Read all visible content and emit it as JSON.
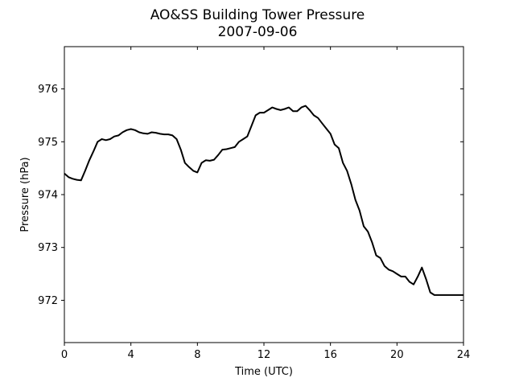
{
  "chart_data": {
    "type": "line",
    "title": "AO&SS Building Tower Pressure",
    "subtitle": "2007-09-06",
    "xlabel": "Time (UTC)",
    "ylabel": "Pressure (hPa)",
    "xlim": [
      0,
      24
    ],
    "ylim": [
      971.2,
      976.8
    ],
    "xticks": [
      0,
      4,
      8,
      12,
      16,
      20,
      24
    ],
    "yticks": [
      972,
      973,
      974,
      975,
      976
    ],
    "grid": false,
    "line_color": "#000000",
    "series": [
      {
        "x": [
          0,
          0.25,
          0.5,
          0.75,
          1.0,
          1.25,
          1.5,
          1.75,
          2.0,
          2.25,
          2.5,
          2.75,
          3.0,
          3.25,
          3.5,
          3.75,
          4.0,
          4.25,
          4.5,
          4.75,
          5.0,
          5.25,
          5.5,
          5.75,
          6.0,
          6.25,
          6.5,
          6.75,
          7.0,
          7.25,
          7.5,
          7.75,
          8.0,
          8.25,
          8.5,
          8.75,
          9.0,
          9.25,
          9.5,
          9.75,
          10.0,
          10.25,
          10.5,
          10.75,
          11.0,
          11.25,
          11.5,
          11.75,
          12.0,
          12.25,
          12.5,
          12.75,
          13.0,
          13.25,
          13.5,
          13.75,
          14.0,
          14.25,
          14.5,
          14.75,
          15.0,
          15.25,
          15.5,
          15.75,
          16.0,
          16.25,
          16.5,
          16.75,
          17.0,
          17.25,
          17.5,
          17.75,
          18.0,
          18.25,
          18.5,
          18.75,
          19.0,
          19.25,
          19.5,
          19.75,
          20.0,
          20.25,
          20.5,
          20.75,
          21.0,
          21.25,
          21.5,
          21.75,
          22.0,
          22.25,
          22.5,
          22.75,
          23.0,
          23.25,
          23.5,
          23.75,
          24.0
        ],
        "values": [
          974.4,
          974.33,
          974.3,
          974.28,
          974.27,
          974.45,
          974.65,
          974.82,
          975.0,
          975.05,
          975.03,
          975.05,
          975.1,
          975.12,
          975.18,
          975.22,
          975.24,
          975.22,
          975.18,
          975.16,
          975.15,
          975.18,
          975.17,
          975.15,
          975.14,
          975.14,
          975.12,
          975.05,
          974.85,
          974.6,
          974.52,
          974.45,
          974.42,
          974.6,
          974.65,
          974.64,
          974.66,
          974.75,
          974.85,
          974.86,
          974.88,
          974.9,
          975.0,
          975.05,
          975.1,
          975.3,
          975.5,
          975.55,
          975.55,
          975.6,
          975.65,
          975.62,
          975.6,
          975.62,
          975.65,
          975.58,
          975.58,
          975.65,
          975.68,
          975.6,
          975.5,
          975.45,
          975.35,
          975.25,
          975.15,
          974.95,
          974.88,
          974.6,
          974.45,
          974.2,
          973.9,
          973.7,
          973.4,
          973.3,
          973.1,
          972.85,
          972.8,
          972.65,
          972.58,
          972.55,
          972.5,
          972.45,
          972.45,
          972.35,
          972.3,
          972.45,
          972.62,
          972.4,
          972.15,
          972.1,
          972.1,
          972.1,
          972.1,
          972.1,
          972.1,
          972.1,
          972.1
        ]
      }
    ]
  }
}
